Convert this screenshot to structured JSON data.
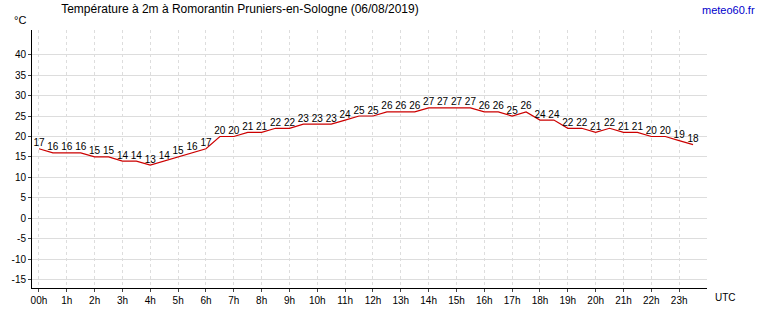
{
  "chart_data": {
    "type": "line",
    "title": "Température à 2m à Romorantin Pruniers-en-Sologne (06/08/2019)",
    "source": "meteo60.fr",
    "x_label": "UTC",
    "y_label": "°C",
    "categories": [
      "00h",
      null,
      "1h",
      null,
      "2h",
      null,
      "3h",
      null,
      "4h",
      null,
      "5h",
      null,
      "6h",
      null,
      "7h",
      null,
      "8h",
      null,
      "9h",
      null,
      "10h",
      null,
      "11h",
      null,
      "12h",
      null,
      "13h",
      null,
      "14h",
      null,
      "15h",
      null,
      "16h",
      null,
      "17h",
      null,
      "18h",
      null,
      "19h",
      null,
      "20h",
      null,
      "21h",
      null,
      "22h",
      null,
      "23h",
      null
    ],
    "values": [
      17,
      16,
      16,
      16,
      15,
      15,
      14,
      14,
      13,
      14,
      15,
      16,
      17,
      20,
      20,
      21,
      21,
      22,
      22,
      23,
      23,
      23,
      24,
      25,
      25,
      26,
      26,
      26,
      27,
      27,
      27,
      27,
      26,
      26,
      25,
      26,
      24,
      24,
      22,
      22,
      21,
      22,
      21,
      21,
      20,
      20,
      19,
      18
    ],
    "color": "#cc0000",
    "ylim": [
      -17,
      46
    ],
    "yticks": [
      -15,
      -10,
      -5,
      0,
      5,
      10,
      15,
      20,
      25,
      30,
      35,
      40
    ],
    "grid": true,
    "data_labels": true
  }
}
